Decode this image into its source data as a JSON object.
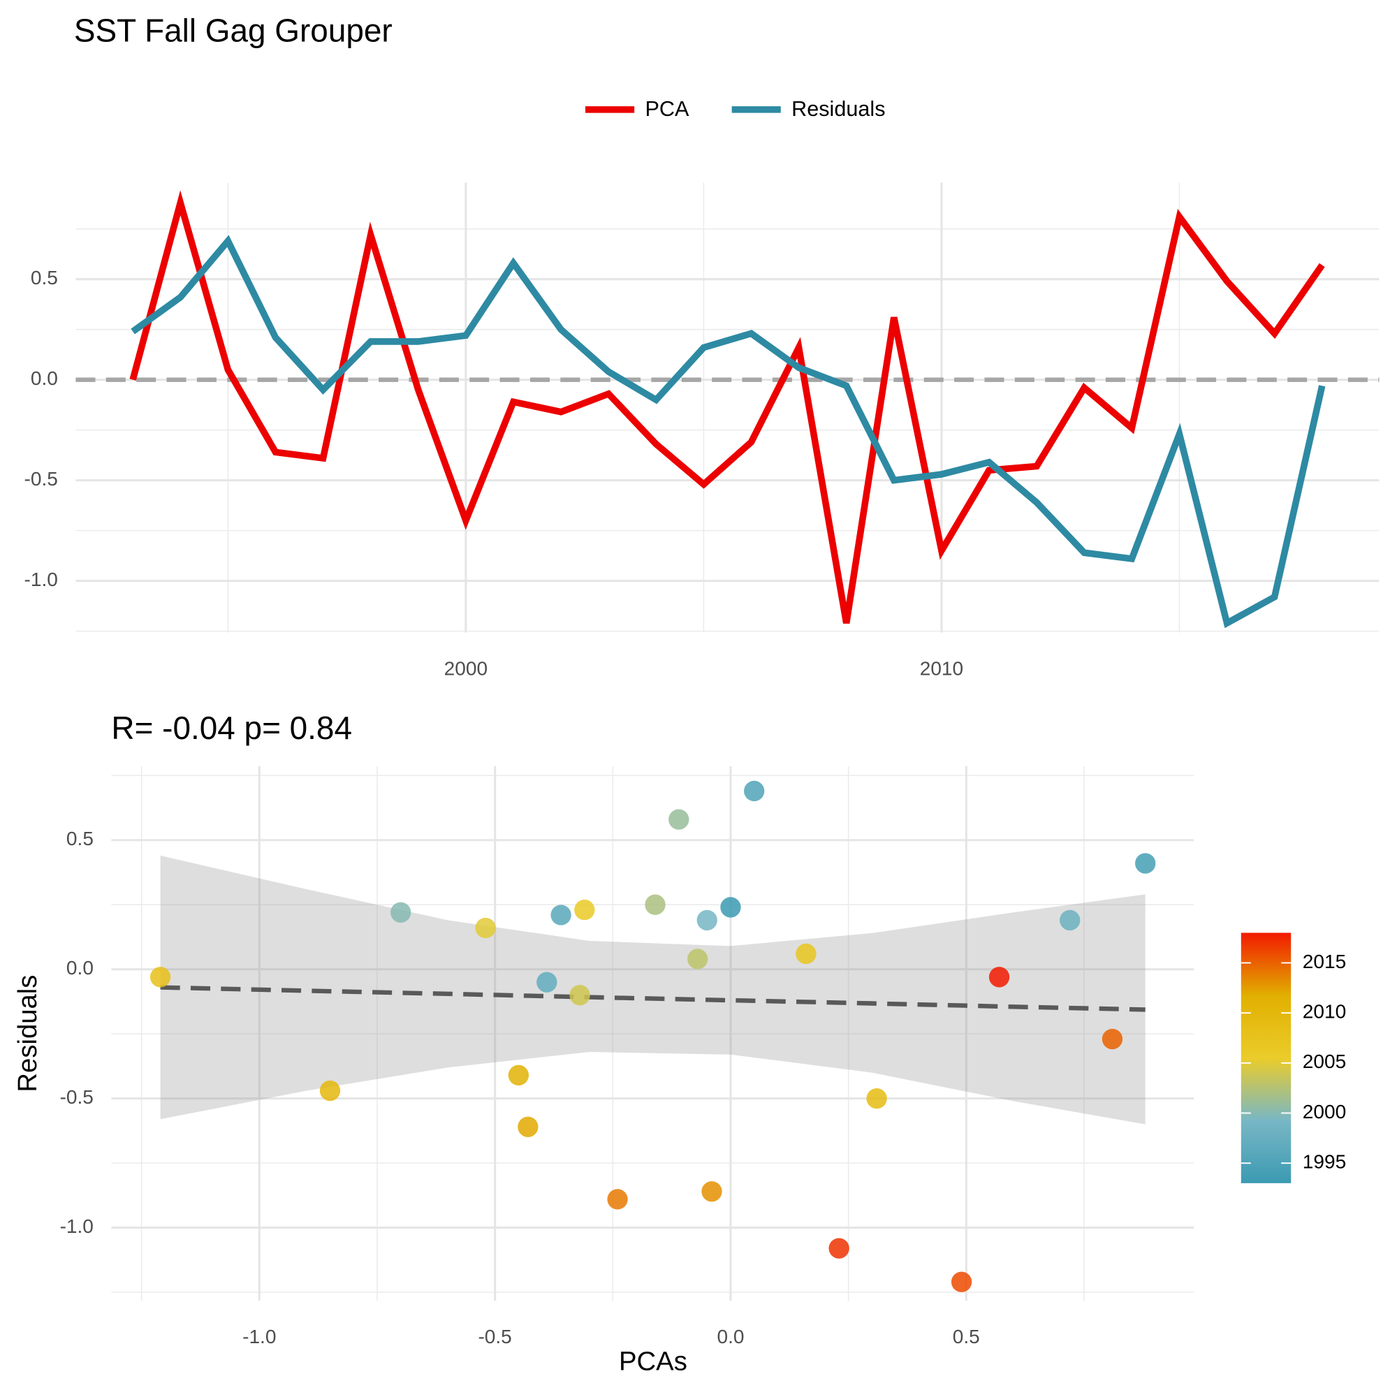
{
  "chart_data": [
    {
      "type": "line",
      "title": "SST Fall Gag Grouper",
      "x": [
        1993,
        1994,
        1995,
        1996,
        1997,
        1998,
        1999,
        2000,
        2001,
        2002,
        2003,
        2004,
        2005,
        2006,
        2007,
        2008,
        2009,
        2010,
        2011,
        2012,
        2013,
        2014,
        2015,
        2016,
        2017,
        2018
      ],
      "series": [
        {
          "name": "PCA",
          "color": "#ec0000",
          "values": [
            0.0,
            0.88,
            0.05,
            -0.36,
            -0.39,
            0.72,
            -0.05,
            -0.7,
            -0.11,
            -0.16,
            -0.07,
            -0.32,
            -0.52,
            -0.31,
            0.16,
            -1.21,
            0.31,
            -0.85,
            -0.45,
            -0.43,
            -0.04,
            -0.24,
            0.81,
            0.49,
            0.23,
            0.57
          ]
        },
        {
          "name": "Residuals",
          "color": "#2e8aa3",
          "values": [
            0.24,
            0.41,
            0.69,
            0.21,
            -0.05,
            0.19,
            0.19,
            0.22,
            0.58,
            0.25,
            0.04,
            -0.1,
            0.16,
            0.23,
            0.06,
            -0.03,
            -0.5,
            -0.47,
            -0.41,
            -0.61,
            -0.86,
            -0.89,
            -0.27,
            -1.21,
            -1.08,
            -0.03
          ]
        }
      ],
      "xlim": [
        1991.8,
        2019.2
      ],
      "xticks": [
        2000,
        2010
      ],
      "xminor": [
        1995,
        2005,
        2015
      ],
      "ylim": [
        -1.257,
        0.98
      ],
      "yticks": [
        {
          "value": -1,
          "label": "-1.0"
        },
        -0.5,
        {
          "value": 0,
          "label": "0.0"
        },
        0.5
      ],
      "yminor": [
        -1.25,
        -0.75,
        -0.25,
        0.25,
        0.75
      ],
      "hline": 0,
      "grid": true,
      "legend": "top"
    },
    {
      "type": "scatter",
      "title": "R= -0.04  p= 0.84",
      "xlabel": "PCAs",
      "ylabel": "Residuals",
      "x": [
        0.0,
        0.88,
        0.05,
        -0.36,
        -0.39,
        0.72,
        -0.05,
        -0.7,
        -0.11,
        -0.16,
        -0.07,
        -0.32,
        -0.52,
        -0.31,
        0.16,
        -1.21,
        0.31,
        -0.85,
        -0.45,
        -0.43,
        -0.04,
        -0.24,
        0.81,
        0.49,
        0.23,
        0.57
      ],
      "y": [
        0.24,
        0.41,
        0.69,
        0.21,
        -0.05,
        0.19,
        0.19,
        0.22,
        0.58,
        0.25,
        0.04,
        -0.1,
        0.16,
        0.23,
        0.06,
        -0.03,
        -0.5,
        -0.47,
        -0.41,
        -0.61,
        -0.86,
        -0.89,
        -0.27,
        -1.21,
        -1.08,
        -0.03
      ],
      "color_values": [
        1993,
        1994,
        1995,
        1996,
        1997,
        1998,
        1999,
        2000,
        2001,
        2002,
        2003,
        2004,
        2005,
        2006,
        2007,
        2008,
        2009,
        2010,
        2011,
        2012,
        2013,
        2014,
        2015,
        2016,
        2017,
        2018
      ],
      "color_scale": {
        "colors": [
          "#3B9AB2",
          "#78B7C5",
          "#EBCC2A",
          "#E1AF00",
          "#F21A00"
        ],
        "limits": [
          1993,
          2018
        ],
        "ticks": [
          1995,
          2000,
          2005,
          2010,
          2015
        ]
      },
      "fit": {
        "x": [
          -1.21,
          -0.9,
          -0.6,
          -0.3,
          0,
          0.3,
          0.6,
          0.88
        ],
        "y": [
          -0.07,
          -0.083,
          -0.095,
          -0.108,
          -0.12,
          -0.132,
          -0.145,
          -0.156
        ],
        "upper": [
          0.44,
          0.31,
          0.19,
          0.11,
          0.09,
          0.14,
          0.22,
          0.29
        ],
        "lower": [
          -0.58,
          -0.47,
          -0.38,
          -0.32,
          -0.33,
          -0.4,
          -0.51,
          -0.6
        ]
      },
      "xlim": [
        -1.314,
        0.983
      ],
      "xticks": [
        {
          "value": -1,
          "label": "-1.0"
        },
        -0.5,
        {
          "value": 0,
          "label": "0.0"
        },
        0.5
      ],
      "xminor": [
        -1.25,
        -0.75,
        -0.25,
        0.25,
        0.75
      ],
      "ylim": [
        -1.283,
        0.786
      ],
      "yticks": [
        {
          "value": -1,
          "label": "-1.0"
        },
        -0.5,
        {
          "value": 0,
          "label": "0.0"
        },
        0.5
      ],
      "yminor": [
        -1.25,
        -0.75,
        -0.25,
        0.25,
        0.75
      ],
      "grid": true,
      "legend": "right"
    }
  ]
}
